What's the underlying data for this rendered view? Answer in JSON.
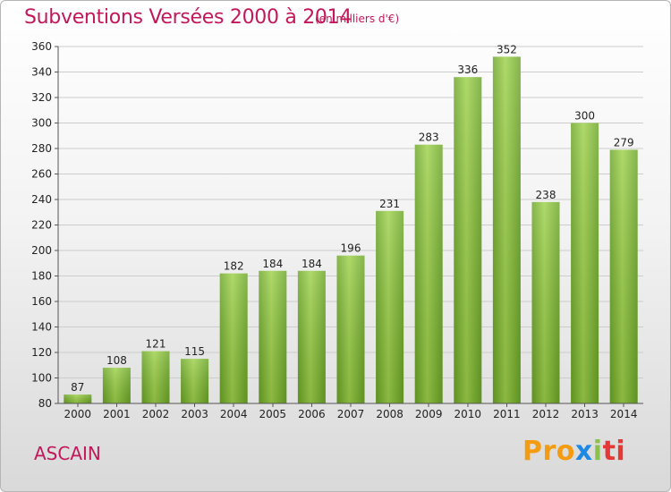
{
  "header": {
    "title": "Subventions Versées 2000 à 2014",
    "subtitle": "(en milliers d'€)"
  },
  "footer": {
    "commune": "ASCAIN",
    "logo": [
      "Pro",
      "x",
      "i",
      "ti"
    ]
  },
  "chart_data": {
    "type": "bar",
    "title": "Subventions Versées 2000 à 2014",
    "subtitle": "(en milliers d'€)",
    "categories": [
      "2000",
      "2001",
      "2002",
      "2003",
      "2004",
      "2005",
      "2006",
      "2007",
      "2008",
      "2009",
      "2010",
      "2011",
      "2012",
      "2013",
      "2014"
    ],
    "values": [
      87,
      108,
      121,
      115,
      182,
      184,
      184,
      196,
      231,
      283,
      336,
      352,
      238,
      300,
      279
    ],
    "ylim": [
      80,
      360
    ],
    "yticks": [
      80,
      100,
      120,
      140,
      160,
      180,
      200,
      220,
      240,
      260,
      280,
      300,
      320,
      340,
      360
    ],
    "grid": true,
    "bar_color": "#7cba2f",
    "bar_color_light": "#9ed14a",
    "data_labels": true,
    "xlabel": "",
    "ylabel": ""
  }
}
